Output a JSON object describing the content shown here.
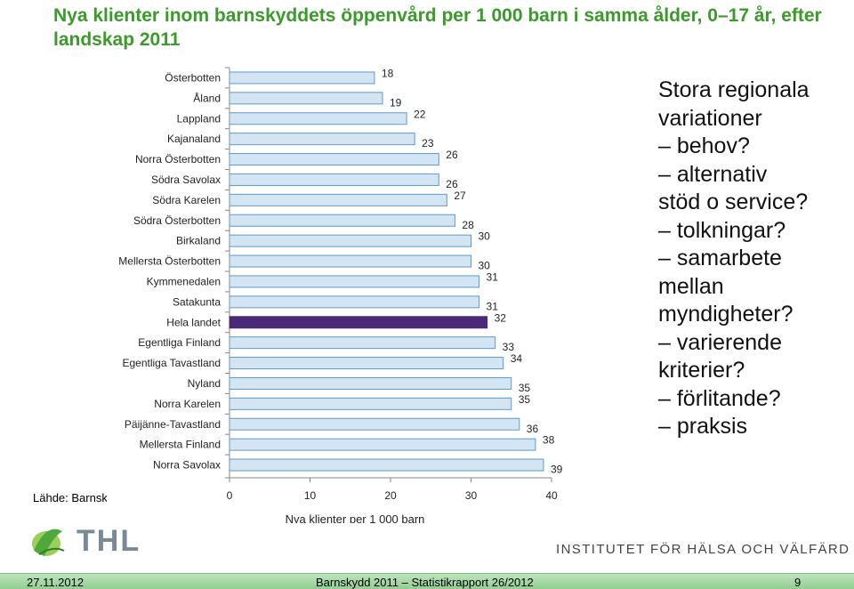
{
  "title": "Nya klienter inom barnskyddets öppenvård per 1 000 barn i samma ålder, 0–17 år, efter landskap 2011",
  "source_label": "Lähde: Barnsk",
  "chart_data": {
    "type": "bar",
    "orientation": "horizontal",
    "categories": [
      "Österbotten",
      "Åland",
      "Lappland",
      "Kajanaland",
      "Norra Österbotten",
      "Södra Savolax",
      "Södra Karelen",
      "Södra Österbotten",
      "Birkaland",
      "Mellersta Österbotten",
      "Kymmenedalen",
      "Satakunta",
      "Hela landet",
      "Egentliga Finland",
      "Egentliga Tavastland",
      "Nyland",
      "Norra Karelen",
      "Päijänne-Tavastland",
      "Mellersta Finland",
      "Norra Savolax"
    ],
    "values": [
      18,
      19,
      22,
      23,
      26,
      26,
      27,
      28,
      30,
      30,
      31,
      31,
      32,
      33,
      34,
      35,
      35,
      36,
      38,
      39
    ],
    "highlight": "Hela landet",
    "xlim": [
      0,
      40
    ],
    "xticks": [
      "0",
      "10",
      "20",
      "30",
      "40"
    ],
    "xlabel": "Nya klienter per 1 000 barn",
    "colors": {
      "bar_fill": "#d3e5f3",
      "bar_stroke": "#5f9ac8",
      "highlight_fill": "#4a2a78"
    }
  },
  "notes": {
    "lines": [
      "Stora regionala",
      "variationer",
      "– behov?",
      "– alternativ",
      "stöd o service?",
      "– tolkningar?",
      "– samarbete",
      "mellan",
      "myndigheter?",
      "– varierende",
      "kriterier?",
      "– förlitande?",
      "– praksis"
    ]
  },
  "logo_text": "THL",
  "institute": "INSTITUTET FÖR HÄLSA OCH VÄLFÄRD",
  "footer": {
    "date": "27.11.2012",
    "center": "Barnskydd 2011 – Statistikrapport 26/2012",
    "page": "9"
  }
}
